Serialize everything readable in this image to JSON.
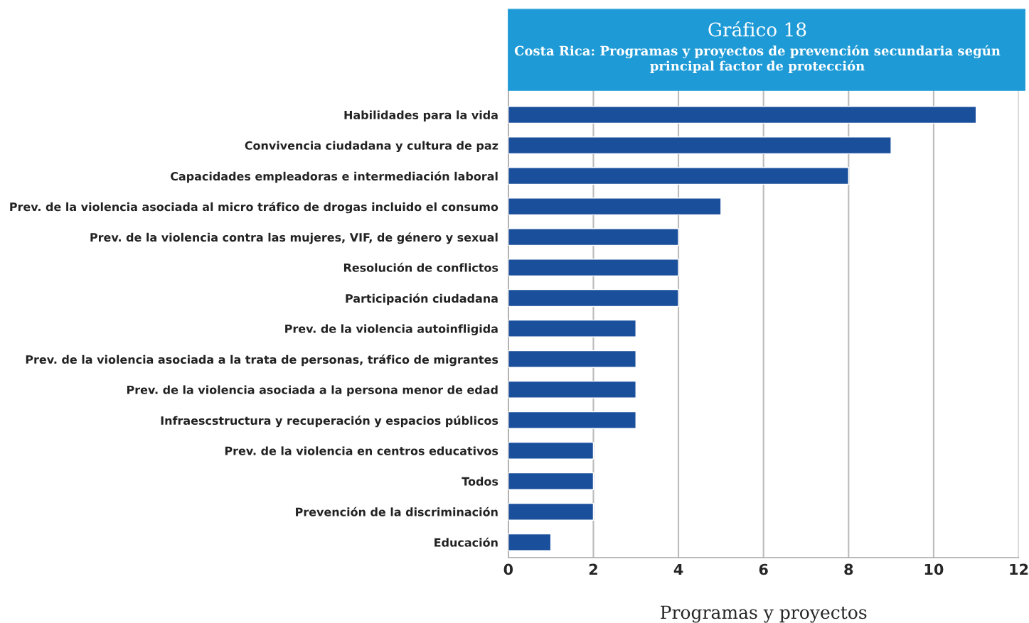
{
  "chart_data": {
    "type": "bar",
    "orientation": "horizontal",
    "title": "Gráfico 18",
    "subtitle": "Costa Rica: Programas y proyectos de prevención secundaria según principal factor de protección",
    "xlabel": "Programas y proyectos",
    "categories": [
      "Habilidades para la vida",
      "Convivencia ciudadana y cultura de paz",
      "Capacidades empleadoras e intermediación laboral",
      "Prev. de la violencia asociada al micro tráfico de drogas incluido el consumo",
      "Prev. de la violencia contra las mujeres, VIF, de género y sexual",
      "Resolución de conflictos",
      "Participación ciudadana",
      "Prev. de la violencia autoinfligida",
      "Prev. de la violencia asociada a la trata de personas, tráfico de migrantes",
      "Prev. de la violencia asociada a la persona menor de edad",
      "Infraescstructura y recuperación y espacios públicos",
      "Prev. de la violencia en centros educativos",
      "Todos",
      "Prevención de la discriminación",
      "Educación"
    ],
    "values": [
      11,
      9,
      8,
      5,
      4,
      4,
      4,
      3,
      3,
      3,
      3,
      2,
      2,
      2,
      1
    ],
    "color": "#1a4f9c",
    "xlim": [
      0,
      12
    ],
    "xticks": [
      0,
      2,
      4,
      6,
      8,
      10,
      12
    ],
    "grid": "x"
  }
}
